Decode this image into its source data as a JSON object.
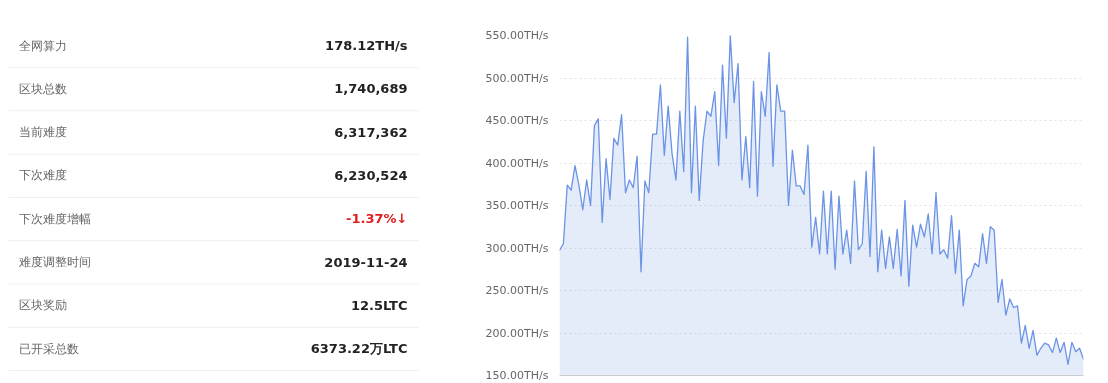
{
  "chart_data": [
    {
      "type": "other",
      "annotations": [
        "全网算力",
        "178.12TH/s",
        "区块总数",
        "1,740,689",
        "当前难度",
        "6,317,362",
        "下次难度",
        "6,230,524",
        "下次难度增幅",
        "-1.37%↓",
        "难度调整时间",
        "2019-11-24",
        "区块奖励",
        "12.5LTC",
        "已开采总数",
        "6373.22万LTC"
      ],
      "colors": [
        "#666666",
        "#222222",
        "#666666",
        "#222222",
        "#666666",
        "#222222",
        "#666666",
        "#222222",
        "#666666",
        "#e02020",
        "#666666",
        "#222222",
        "#666666",
        "#222222",
        "#666666",
        "#222222"
      ]
    },
    {
      "type": "area",
      "categories": [
        null,
        null,
        null,
        null,
        null,
        null,
        null,
        null,
        null,
        null,
        null,
        null,
        null,
        null,
        null,
        null,
        null,
        null,
        null,
        null,
        null,
        null,
        null,
        null,
        null,
        null,
        null,
        null,
        null,
        null,
        null,
        null,
        null,
        null,
        null,
        null,
        null,
        null,
        null,
        null,
        null,
        null,
        null,
        null,
        null,
        null,
        null,
        null,
        null,
        null,
        null,
        null,
        null,
        null,
        null,
        null,
        null,
        null,
        null,
        null,
        null,
        null,
        null,
        null,
        null,
        null,
        null,
        null,
        null,
        null,
        null,
        null,
        null,
        null,
        null,
        null,
        null,
        null,
        null,
        null,
        null,
        null,
        null,
        null,
        null,
        null,
        null,
        null,
        null,
        null,
        null,
        null,
        null,
        null,
        null,
        null,
        null,
        null,
        null,
        null,
        null,
        null,
        null,
        null,
        null,
        null,
        null,
        null,
        null,
        null,
        null,
        null,
        null,
        null,
        null,
        null,
        null,
        null,
        null,
        null,
        null,
        null,
        null,
        null,
        null,
        null,
        null,
        null,
        null,
        null,
        null,
        null,
        null,
        null,
        null,
        null
      ],
      "series": [
        {
          "color": "#6b93e6",
          "values": [
            297,
            305,
            374,
            368,
            397,
            374,
            345,
            380,
            350,
            444,
            452,
            330,
            405,
            357,
            429,
            421,
            457,
            365,
            380,
            371,
            408,
            272,
            379,
            365,
            434,
            434,
            492,
            409,
            467,
            411,
            380,
            461,
            390,
            548,
            365,
            467,
            356,
            426,
            461,
            455,
            484,
            397,
            515,
            429,
            550,
            471,
            517,
            380,
            431,
            371,
            496,
            361,
            484,
            455,
            530,
            396,
            492,
            461,
            461,
            350,
            415,
            373,
            373,
            363,
            421,
            301,
            336,
            293,
            367,
            293,
            367,
            275,
            361,
            293,
            321,
            282,
            379,
            298,
            305,
            390,
            290,
            419,
            272,
            321,
            276,
            313,
            276,
            322,
            267,
            356,
            255,
            327,
            301,
            328,
            313,
            340,
            293,
            365,
            293,
            298,
            288,
            338,
            270,
            321,
            232,
            263,
            267,
            282,
            278,
            317,
            282,
            325,
            321,
            236,
            263,
            221,
            240,
            230,
            232,
            188,
            209,
            182,
            203,
            174,
            182,
            188,
            186,
            177,
            194,
            177,
            189,
            163,
            189,
            178,
            182,
            169
          ]
        }
      ],
      "ylim": [
        150,
        550
      ],
      "yticks": [
        {
          "value": 150,
          "label": "150.00TH/s"
        },
        {
          "value": 200,
          "label": "200.00TH/s"
        },
        {
          "value": 250,
          "label": "250.00TH/s"
        },
        {
          "value": 300,
          "label": "300.00TH/s"
        },
        {
          "value": 350,
          "label": "350.00TH/s"
        },
        {
          "value": 400,
          "label": "400.00TH/s"
        },
        {
          "value": 450,
          "label": "450.00TH/s"
        },
        {
          "value": 500,
          "label": "500.00TH/s"
        },
        {
          "value": 550,
          "label": "550.00TH/s"
        }
      ],
      "grid": "y",
      "tick_labels": "y",
      "line_style": "solid"
    }
  ]
}
